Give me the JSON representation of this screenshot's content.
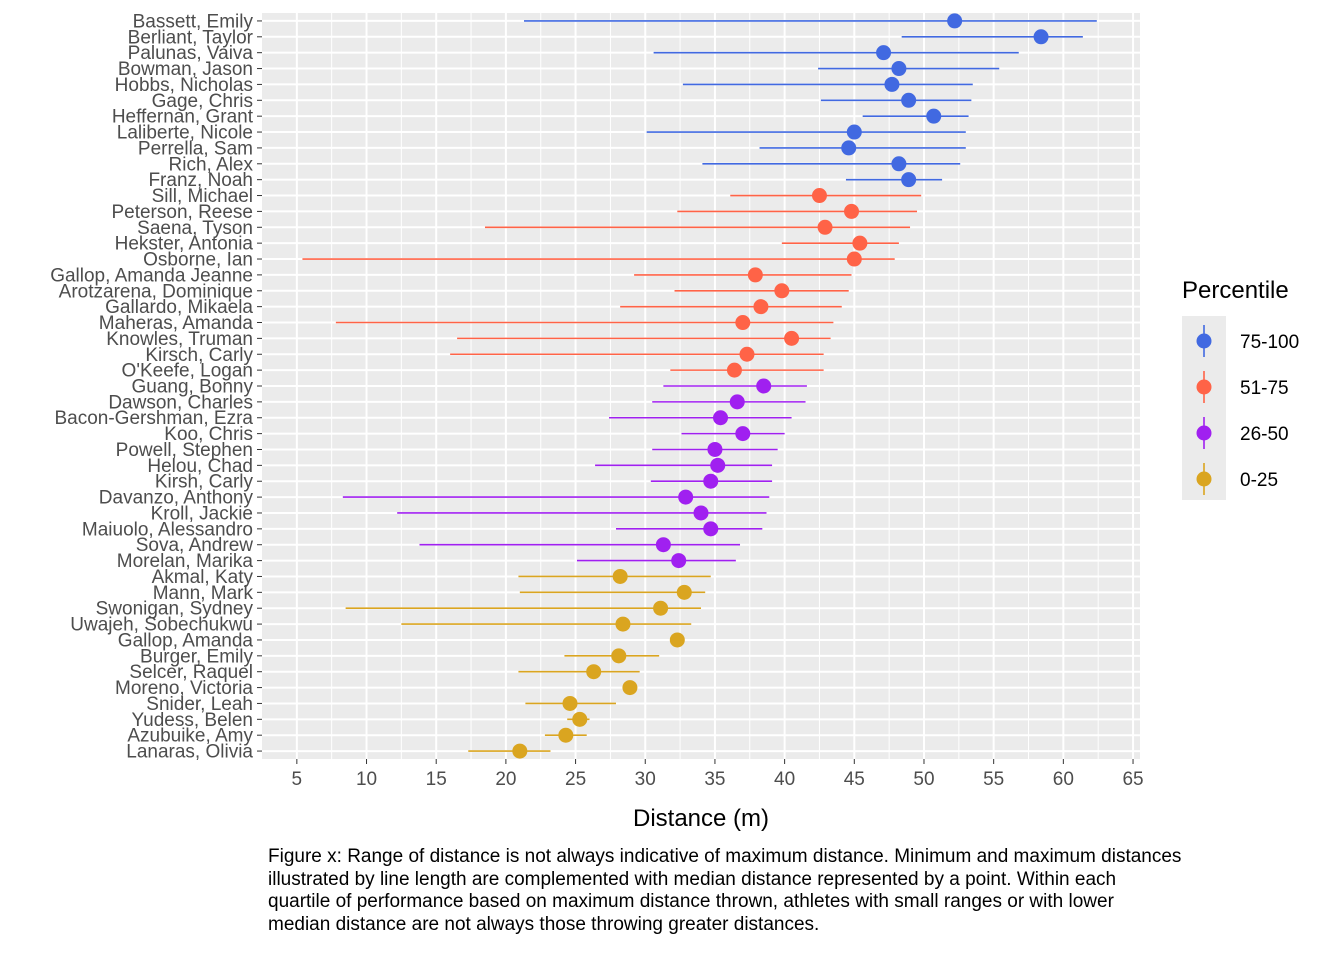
{
  "chart_data": {
    "type": "errorbar-dot",
    "xlabel": "Distance (m)",
    "ylabel": "",
    "xlim": [
      2.5,
      65.5
    ],
    "xticks": [
      5,
      10,
      15,
      20,
      25,
      30,
      35,
      40,
      45,
      50,
      55,
      60,
      65
    ],
    "grid": true,
    "legend": {
      "title": "Percentile",
      "position": "right",
      "entries": [
        {
          "label": "75-100",
          "color": "#4169e1"
        },
        {
          "label": "51-75",
          "color": "#ff6347"
        },
        {
          "label": "26-50",
          "color": "#a020f0"
        },
        {
          "label": "0-25",
          "color": "#daa520"
        }
      ]
    },
    "athletes": [
      {
        "name": "Bassett, Emily",
        "group": "75-100",
        "min": 21.3,
        "median": 52.2,
        "max": 62.4
      },
      {
        "name": "Berliant, Taylor",
        "group": "75-100",
        "min": 48.4,
        "median": 58.4,
        "max": 61.4
      },
      {
        "name": "Palunas, Vaiva",
        "group": "75-100",
        "min": 30.6,
        "median": 47.1,
        "max": 56.8
      },
      {
        "name": "Bowman, Jason",
        "group": "75-100",
        "min": 42.4,
        "median": 48.2,
        "max": 55.4
      },
      {
        "name": "Hobbs, Nicholas",
        "group": "75-100",
        "min": 32.7,
        "median": 47.7,
        "max": 53.5
      },
      {
        "name": "Gage, Chris",
        "group": "75-100",
        "min": 42.6,
        "median": 48.9,
        "max": 53.4
      },
      {
        "name": "Heffernan, Grant",
        "group": "75-100",
        "min": 45.6,
        "median": 50.7,
        "max": 53.2
      },
      {
        "name": "Laliberte, Nicole",
        "group": "75-100",
        "min": 30.1,
        "median": 45.0,
        "max": 53.0
      },
      {
        "name": "Perrella, Sam",
        "group": "75-100",
        "min": 38.2,
        "median": 44.6,
        "max": 53.0
      },
      {
        "name": "Rich, Alex",
        "group": "75-100",
        "min": 34.1,
        "median": 48.2,
        "max": 52.6
      },
      {
        "name": "Franz, Noah",
        "group": "75-100",
        "min": 44.4,
        "median": 48.9,
        "max": 51.3
      },
      {
        "name": "Sill, Michael",
        "group": "51-75",
        "min": 36.1,
        "median": 42.5,
        "max": 49.8
      },
      {
        "name": "Peterson, Reese",
        "group": "51-75",
        "min": 32.3,
        "median": 44.8,
        "max": 49.5
      },
      {
        "name": "Saena, Tyson",
        "group": "51-75",
        "min": 18.5,
        "median": 42.9,
        "max": 49.0
      },
      {
        "name": "Hekster, Antonia",
        "group": "51-75",
        "min": 39.8,
        "median": 45.4,
        "max": 48.2
      },
      {
        "name": "Osborne, Ian",
        "group": "51-75",
        "min": 5.4,
        "median": 45.0,
        "max": 47.9
      },
      {
        "name": "Gallop, Amanda Jeanne",
        "group": "51-75",
        "min": 29.2,
        "median": 37.9,
        "max": 44.8
      },
      {
        "name": "Arotzarena, Dominique",
        "group": "51-75",
        "min": 32.1,
        "median": 39.8,
        "max": 44.6
      },
      {
        "name": "Gallardo, Mikaela",
        "group": "51-75",
        "min": 28.2,
        "median": 38.3,
        "max": 44.1
      },
      {
        "name": "Maheras, Amanda",
        "group": "51-75",
        "min": 7.8,
        "median": 37.0,
        "max": 43.5
      },
      {
        "name": "Knowles, Truman",
        "group": "51-75",
        "min": 16.5,
        "median": 40.5,
        "max": 43.3
      },
      {
        "name": "Kirsch, Carly",
        "group": "51-75",
        "min": 16.0,
        "median": 37.3,
        "max": 42.8
      },
      {
        "name": "O'Keefe, Logan",
        "group": "51-75",
        "min": 31.8,
        "median": 36.4,
        "max": 42.8
      },
      {
        "name": "Guang, Bonny",
        "group": "26-50",
        "min": 31.3,
        "median": 38.5,
        "max": 41.6
      },
      {
        "name": "Dawson, Charles",
        "group": "26-50",
        "min": 30.5,
        "median": 36.6,
        "max": 41.5
      },
      {
        "name": "Bacon-Gershman, Ezra",
        "group": "26-50",
        "min": 27.4,
        "median": 35.4,
        "max": 40.5
      },
      {
        "name": "Koo, Chris",
        "group": "26-50",
        "min": 32.6,
        "median": 37.0,
        "max": 40.0
      },
      {
        "name": "Powell, Stephen",
        "group": "26-50",
        "min": 30.5,
        "median": 35.0,
        "max": 39.5
      },
      {
        "name": "Helou, Chad",
        "group": "26-50",
        "min": 26.4,
        "median": 35.2,
        "max": 39.1
      },
      {
        "name": "Kirsh, Carly",
        "group": "26-50",
        "min": 30.4,
        "median": 34.7,
        "max": 39.1
      },
      {
        "name": "Davanzo, Anthony",
        "group": "26-50",
        "min": 8.3,
        "median": 32.9,
        "max": 38.9
      },
      {
        "name": "Kroll, Jackie",
        "group": "26-50",
        "min": 12.2,
        "median": 34.0,
        "max": 38.7
      },
      {
        "name": "Maiuolo, Alessandro",
        "group": "26-50",
        "min": 27.9,
        "median": 34.7,
        "max": 38.4
      },
      {
        "name": "Sova, Andrew",
        "group": "26-50",
        "min": 13.8,
        "median": 31.3,
        "max": 36.8
      },
      {
        "name": "Morelan, Marika",
        "group": "26-50",
        "min": 25.1,
        "median": 32.4,
        "max": 36.5
      },
      {
        "name": "Akmal, Katy",
        "group": "0-25",
        "min": 20.9,
        "median": 28.2,
        "max": 34.7
      },
      {
        "name": "Mann, Mark",
        "group": "0-25",
        "min": 21.0,
        "median": 32.8,
        "max": 34.3
      },
      {
        "name": "Swonigan, Sydney",
        "group": "0-25",
        "min": 8.5,
        "median": 31.1,
        "max": 34.0
      },
      {
        "name": "Uwajeh, Sobechukwu",
        "group": "0-25",
        "min": 12.5,
        "median": 28.4,
        "max": 33.3
      },
      {
        "name": "Gallop, Amanda",
        "group": "0-25",
        "min": 32.3,
        "median": 32.3,
        "max": 32.3
      },
      {
        "name": "Burger, Emily",
        "group": "0-25",
        "min": 24.2,
        "median": 28.1,
        "max": 31.0
      },
      {
        "name": "Selcer, Raquel",
        "group": "0-25",
        "min": 20.9,
        "median": 26.3,
        "max": 29.6
      },
      {
        "name": "Moreno, Victoria",
        "group": "0-25",
        "min": 28.9,
        "median": 28.9,
        "max": 28.9
      },
      {
        "name": "Snider, Leah",
        "group": "0-25",
        "min": 21.4,
        "median": 24.6,
        "max": 27.9
      },
      {
        "name": "Yudess, Belen",
        "group": "0-25",
        "min": 24.4,
        "median": 25.3,
        "max": 26.0
      },
      {
        "name": "Azubuike, Amy",
        "group": "0-25",
        "min": 22.8,
        "median": 24.3,
        "max": 25.8
      },
      {
        "name": "Lanaras, Olivia",
        "group": "0-25",
        "min": 17.3,
        "median": 21.0,
        "max": 23.2
      }
    ]
  },
  "caption": "Figure x: Range of distance is not always indicative of maximum distance. Minimum and maximum distances\nillustrated by line length are complemented with median distance represented by a point. Within each\nquartile of performance based on maximum distance thrown, athletes with small ranges or with lower\nmedian distance are not always those throwing greater distances."
}
